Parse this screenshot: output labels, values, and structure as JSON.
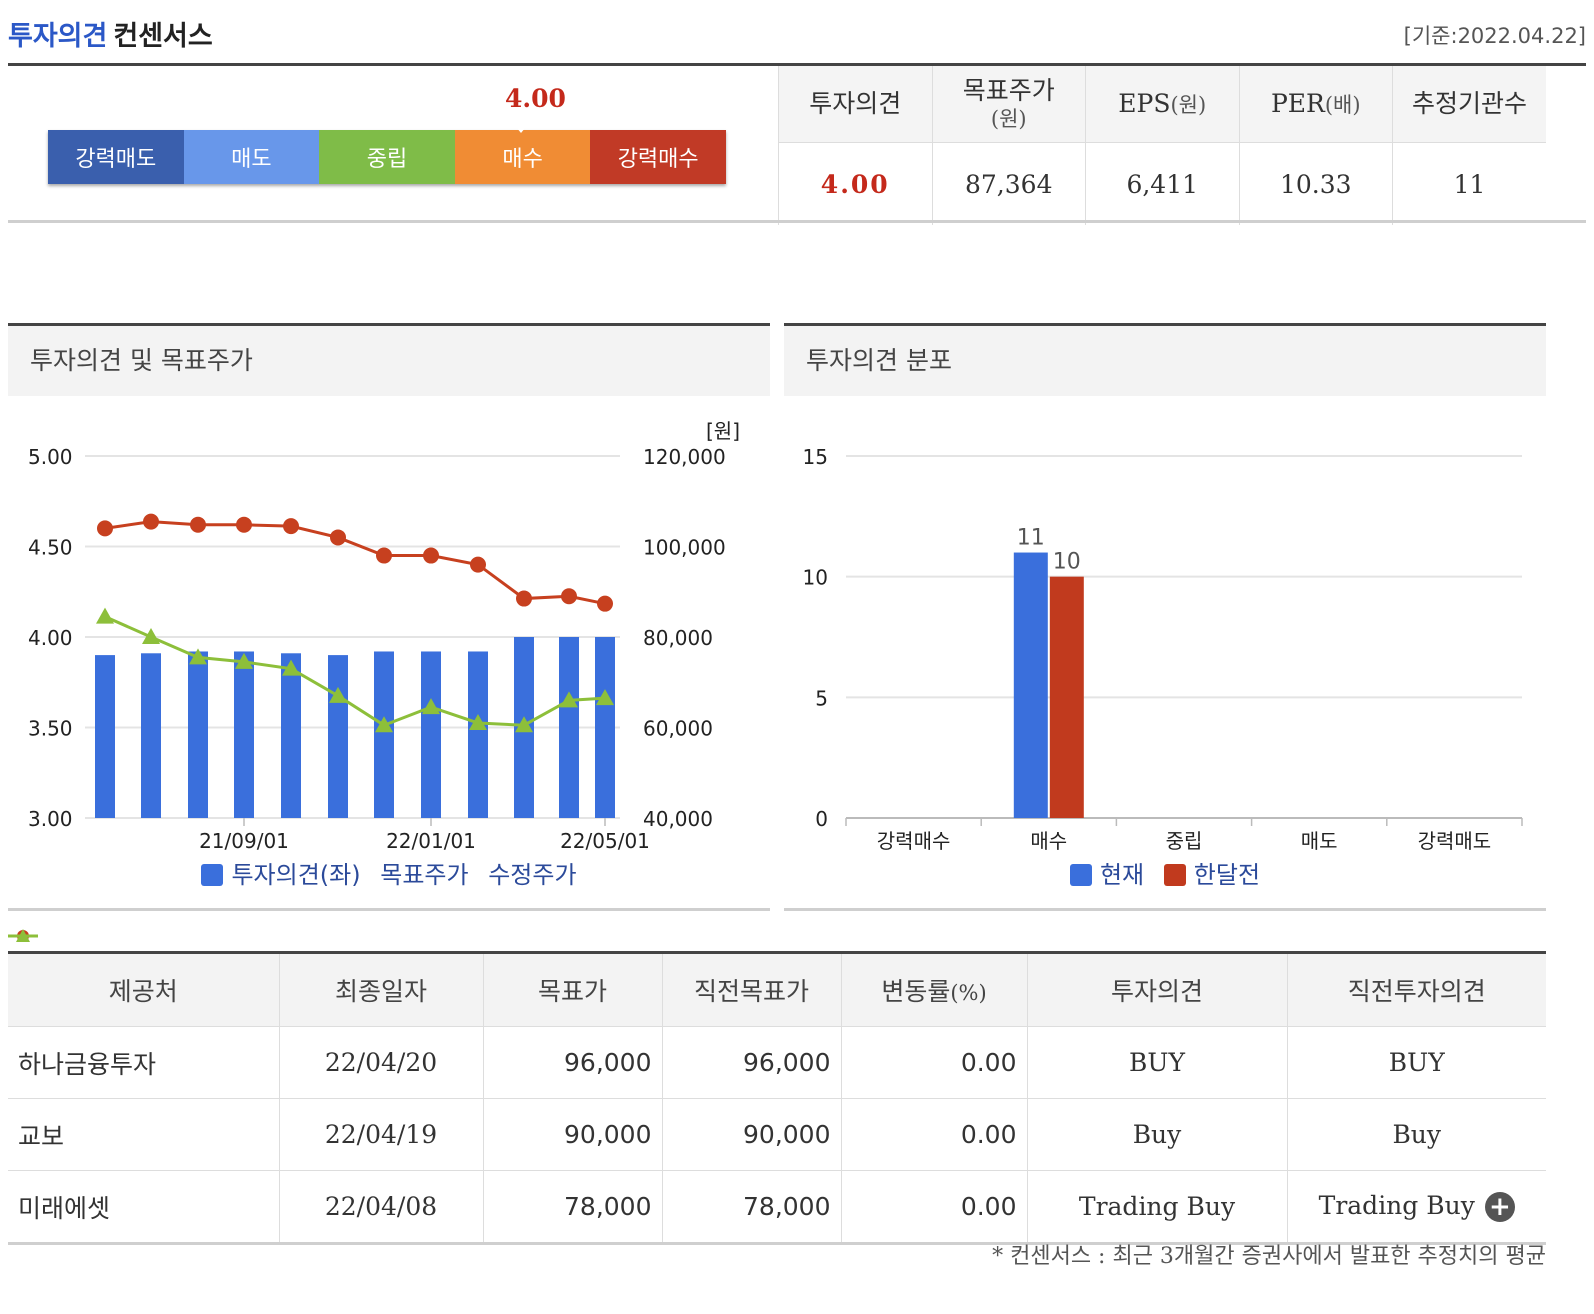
{
  "header": {
    "title_blue": "투자의견",
    "title_black": "컨센서스",
    "date": "[기준:2022.04.22]"
  },
  "gauge": {
    "value": "4.00",
    "level": 4.0,
    "segments": [
      {
        "label": "강력매도",
        "color": "#3a5fad"
      },
      {
        "label": "매도",
        "color": "#6897ea"
      },
      {
        "label": "중립",
        "color": "#7fbc48"
      },
      {
        "label": "매수",
        "color": "#f08c34"
      },
      {
        "label": "강력매수",
        "color": "#c13a26"
      }
    ]
  },
  "summary": {
    "headers": [
      {
        "label": "투자의견",
        "unit": ""
      },
      {
        "label": "목표주가",
        "unit": "(원)"
      },
      {
        "label": "EPS",
        "unit": "(원)"
      },
      {
        "label": "PER",
        "unit": "(배)"
      },
      {
        "label": "추정기관수",
        "unit": ""
      }
    ],
    "values": [
      "4.00",
      "87,364",
      "6,411",
      "10.33",
      "11"
    ],
    "highlight_color": "#c4291b"
  },
  "panel_left": {
    "title": "투자의견 및 목표주가",
    "legend": [
      "투자의견(좌)",
      "목표주가",
      "수정주가"
    ],
    "unit": "[원]"
  },
  "panel_right": {
    "title": "투자의견 분포",
    "legend": [
      "현재",
      "한달전"
    ]
  },
  "chart_data": [
    {
      "type": "bar",
      "left_axis": {
        "ticks": [
          "5.00",
          "4.50",
          "4.00",
          "3.50",
          "3.00"
        ],
        "ylim": [
          3.0,
          5.0
        ]
      },
      "right_axis": {
        "ticks": [
          "120,000",
          "100,000",
          "80,000",
          "60,000",
          "40,000"
        ],
        "ylim": [
          40000,
          120000
        ]
      },
      "x_ticks": [
        "21/09/01",
        "22/01/01",
        "22/05/01"
      ],
      "series": [
        {
          "name": "투자의견(좌)",
          "type": "bar",
          "color": "#3a6fdc",
          "values": [
            3.9,
            3.91,
            3.92,
            3.92,
            3.91,
            3.9,
            3.92,
            3.92,
            3.92,
            4.0,
            4.0,
            4.0
          ]
        },
        {
          "name": "목표주가",
          "type": "line",
          "color": "#c7401f",
          "values": [
            104000,
            105500,
            104800,
            104800,
            104500,
            102000,
            98000,
            98000,
            96000,
            88500,
            89000,
            87364
          ]
        },
        {
          "name": "수정주가",
          "type": "line",
          "color": "#8dbf3a",
          "values": [
            84500,
            80000,
            75500,
            74500,
            73000,
            67000,
            60500,
            64500,
            61000,
            60500,
            66000,
            66500
          ]
        }
      ],
      "grid": true
    },
    {
      "type": "bar",
      "categories": [
        "강력매수",
        "매수",
        "중립",
        "매도",
        "강력매도"
      ],
      "ylim": [
        0,
        15
      ],
      "y_ticks": [
        "15",
        "10",
        "5",
        "0"
      ],
      "series": [
        {
          "name": "현재",
          "color": "#3a6fdc",
          "values": [
            0,
            11,
            0,
            0,
            0
          ]
        },
        {
          "name": "한달전",
          "color": "#c13a1e",
          "values": [
            0,
            10,
            0,
            0,
            0
          ]
        }
      ],
      "grid": true
    }
  ],
  "brokers": {
    "headers": [
      "제공처",
      "최종일자",
      "목표가",
      "직전목표가",
      "변동률",
      "(%)",
      "투자의견",
      "직전투자의견"
    ],
    "rows": [
      [
        "하나금융투자",
        "22/04/20",
        "96,000",
        "96,000",
        "0.00",
        "BUY",
        "BUY"
      ],
      [
        "교보",
        "22/04/19",
        "90,000",
        "90,000",
        "0.00",
        "Buy",
        "Buy"
      ],
      [
        "미래에셋",
        "22/04/08",
        "78,000",
        "78,000",
        "0.00",
        "Trading Buy",
        "Trading Buy"
      ]
    ]
  },
  "footnote": "* 컨센서스 : 최근 3개월간 증권사에서 발표한 추정치의 평균"
}
